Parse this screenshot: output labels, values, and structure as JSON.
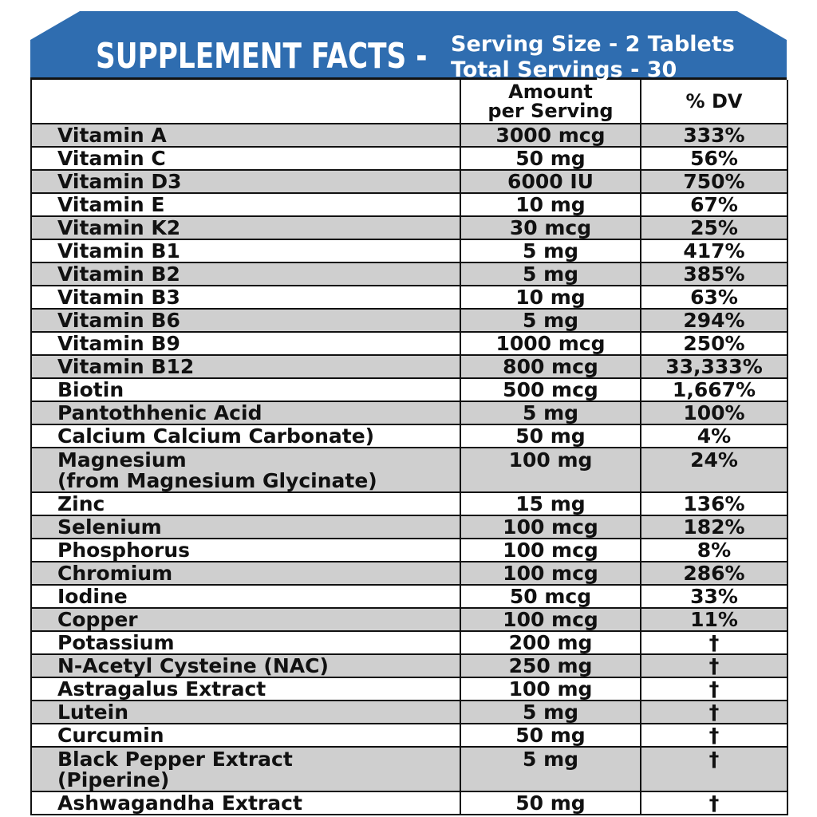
{
  "header": {
    "title": "SUPPLEMENT FACTS -",
    "serving_size": "Serving Size - 2 Tablets",
    "total_servings": "Total Servings - 30"
  },
  "columns": {
    "name": "",
    "amount_line1": "Amount",
    "amount_line2": "per Serving",
    "dv": "% DV"
  },
  "colors": {
    "header_bg": "#2f6db0",
    "row_shade": "#cfcfcf"
  },
  "rows": [
    {
      "name": "Vitamin A",
      "amount": "3000 mcg",
      "dv": "333%"
    },
    {
      "name": "Vitamin C",
      "amount": "50 mg",
      "dv": "56%"
    },
    {
      "name": "Vitamin D3",
      "amount": "6000 IU",
      "dv": "750%"
    },
    {
      "name": "Vitamin E",
      "amount": "10 mg",
      "dv": "67%"
    },
    {
      "name": "Vitamin K2",
      "amount": "30 mcg",
      "dv": "25%"
    },
    {
      "name": "Vitamin B1",
      "amount": "5 mg",
      "dv": "417%"
    },
    {
      "name": "Vitamin B2",
      "amount": "5 mg",
      "dv": "385%"
    },
    {
      "name": "Vitamin B3",
      "amount": "10 mg",
      "dv": "63%"
    },
    {
      "name": "Vitamin B6",
      "amount": "5 mg",
      "dv": "294%"
    },
    {
      "name": "Vitamin B9",
      "amount": "1000 mcg",
      "dv": "250%"
    },
    {
      "name": "Vitamin B12",
      "amount": "800 mcg",
      "dv": "33,333%"
    },
    {
      "name": "Biotin",
      "amount": "500 mcg",
      "dv": "1,667%"
    },
    {
      "name": "Pantothhenic Acid",
      "amount": "5 mg",
      "dv": "100%"
    },
    {
      "name": "Calcium Calcium Carbonate)",
      "amount": "50 mg",
      "dv": "4%"
    },
    {
      "name": "Magnesium",
      "name_sub": "(from Magnesium Glycinate)",
      "amount": "100 mg",
      "dv": "24%"
    },
    {
      "name": "Zinc",
      "amount": "15 mg",
      "dv": "136%"
    },
    {
      "name": "Selenium",
      "amount": "100 mcg",
      "dv": "182%"
    },
    {
      "name": "Phosphorus",
      "amount": "100 mcg",
      "dv": "8%"
    },
    {
      "name": "Chromium",
      "amount": "100 mcg",
      "dv": "286%"
    },
    {
      "name": "Iodine",
      "amount": "50 mcg",
      "dv": "33%"
    },
    {
      "name": "Copper",
      "amount": "100 mcg",
      "dv": "11%"
    },
    {
      "name": "Potassium",
      "amount": "200 mg",
      "dv": "†"
    },
    {
      "name": "N-Acetyl Cysteine (NAC)",
      "amount": "250 mg",
      "dv": "†"
    },
    {
      "name": "Astragalus Extract",
      "amount": "100 mg",
      "dv": "†"
    },
    {
      "name": "Lutein",
      "amount": "5 mg",
      "dv": "†"
    },
    {
      "name": "Curcumin",
      "amount": "50 mg",
      "dv": "†"
    },
    {
      "name": "Black Pepper Extract",
      "name_sub": "(Piperine)",
      "amount": "5 mg",
      "dv": "†"
    },
    {
      "name": "Ashwagandha Extract",
      "amount": "50 mg",
      "dv": "†"
    }
  ]
}
